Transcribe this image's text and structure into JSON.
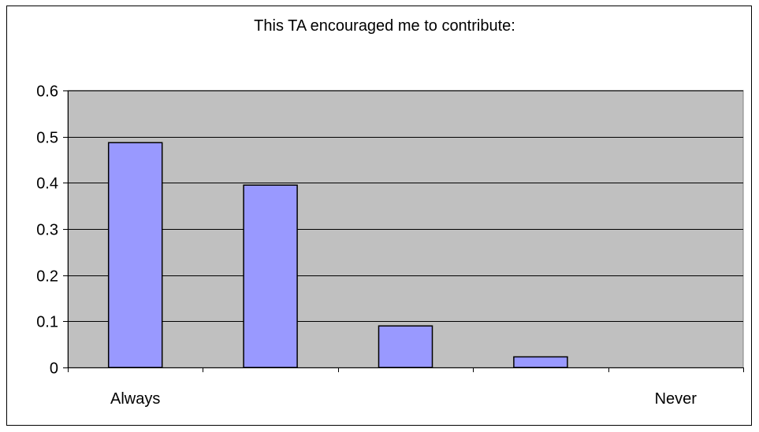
{
  "chart_data": {
    "type": "bar",
    "title": "This TA encouraged me to contribute:",
    "categories": [
      "Always",
      "",
      "",
      "",
      "Never"
    ],
    "values": [
      0.487,
      0.395,
      0.09,
      0.023,
      0
    ],
    "ylim": [
      0,
      0.6
    ],
    "yticks": [
      "0",
      "0.1",
      "0.2",
      "0.3",
      "0.4",
      "0.5",
      "0.6"
    ],
    "xlabel": "",
    "ylabel": "",
    "grid": true,
    "legend": "none",
    "colors": {
      "plot_background": "#c0c0c0",
      "bar_fill": "#9999ff",
      "bar_stroke": "#000000",
      "gridline": "#000000",
      "frame": "#000000"
    }
  }
}
